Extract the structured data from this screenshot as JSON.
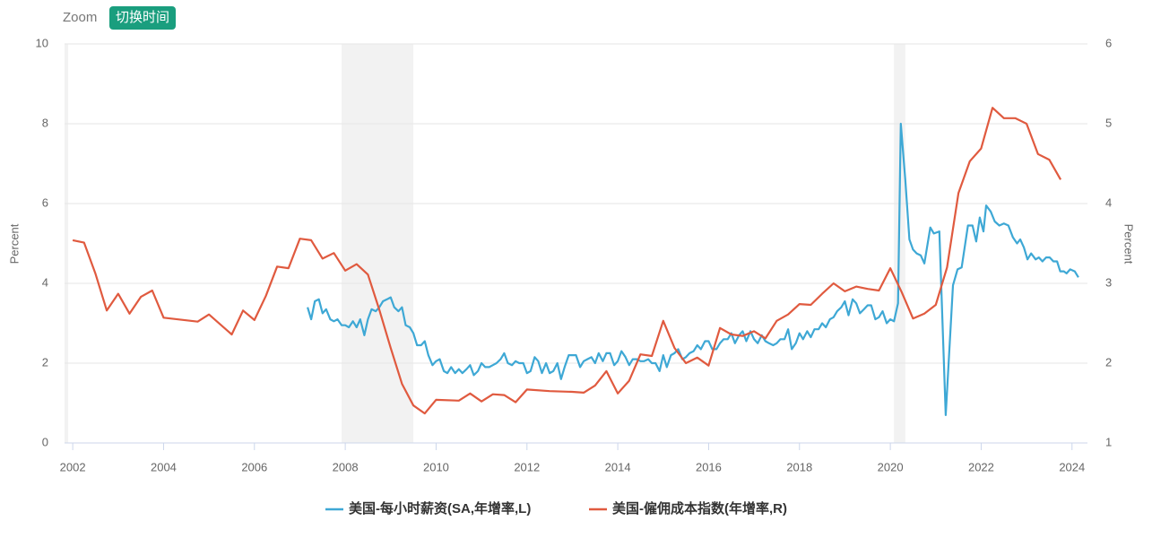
{
  "toolbar": {
    "zoom": "Zoom",
    "button": "切换时间"
  },
  "chart_data": {
    "type": "line",
    "ylabel": "Percent",
    "y2label": "Percent",
    "xlim": [
      2001.82,
      2024.34
    ],
    "xticks": [
      2002,
      2004,
      2006,
      2008,
      2010,
      2012,
      2014,
      2016,
      2018,
      2020,
      2022,
      2024
    ],
    "ylim": [
      0,
      10
    ],
    "yticks": [
      0,
      2,
      4,
      6,
      8,
      10
    ],
    "y2lim": [
      1,
      6
    ],
    "y2ticks": [
      1,
      2,
      3,
      4,
      5,
      6
    ],
    "grid": true,
    "recessions": [
      [
        2001.82,
        2001.9
      ],
      [
        2007.92,
        2009.5
      ],
      [
        2020.08,
        2020.33
      ]
    ],
    "legend": "bottom",
    "series": [
      {
        "name": "美国-每小时薪资(SA,年增率,L)",
        "color": "#3ea8d5",
        "axis": "y",
        "x": [
          2007.17,
          2007.25,
          2007.33,
          2007.42,
          2007.5,
          2007.58,
          2007.67,
          2007.75,
          2007.83,
          2007.92,
          2008.0,
          2008.08,
          2008.17,
          2008.25,
          2008.33,
          2008.42,
          2008.5,
          2008.58,
          2008.67,
          2008.75,
          2008.83,
          2008.92,
          2009.0,
          2009.08,
          2009.17,
          2009.25,
          2009.33,
          2009.42,
          2009.5,
          2009.58,
          2009.67,
          2009.75,
          2009.83,
          2009.92,
          2010.0,
          2010.08,
          2010.17,
          2010.25,
          2010.33,
          2010.42,
          2010.5,
          2010.58,
          2010.67,
          2010.75,
          2010.83,
          2010.92,
          2011.0,
          2011.08,
          2011.17,
          2011.25,
          2011.33,
          2011.42,
          2011.5,
          2011.58,
          2011.67,
          2011.75,
          2011.83,
          2011.92,
          2012.0,
          2012.08,
          2012.17,
          2012.25,
          2012.33,
          2012.42,
          2012.5,
          2012.58,
          2012.67,
          2012.75,
          2012.83,
          2012.92,
          2013.0,
          2013.08,
          2013.17,
          2013.25,
          2013.33,
          2013.42,
          2013.5,
          2013.58,
          2013.67,
          2013.75,
          2013.83,
          2013.92,
          2014.0,
          2014.08,
          2014.17,
          2014.25,
          2014.33,
          2014.42,
          2014.5,
          2014.58,
          2014.67,
          2014.75,
          2014.83,
          2014.92,
          2015.0,
          2015.08,
          2015.17,
          2015.25,
          2015.33,
          2015.42,
          2015.5,
          2015.58,
          2015.67,
          2015.75,
          2015.83,
          2015.92,
          2016.0,
          2016.08,
          2016.17,
          2016.25,
          2016.33,
          2016.42,
          2016.5,
          2016.58,
          2016.67,
          2016.75,
          2016.83,
          2016.92,
          2017.0,
          2017.08,
          2017.17,
          2017.25,
          2017.33,
          2017.42,
          2017.5,
          2017.58,
          2017.67,
          2017.75,
          2017.83,
          2017.92,
          2018.0,
          2018.08,
          2018.17,
          2018.25,
          2018.33,
          2018.42,
          2018.5,
          2018.58,
          2018.67,
          2018.75,
          2018.83,
          2018.92,
          2019.0,
          2019.08,
          2019.17,
          2019.25,
          2019.33,
          2019.42,
          2019.5,
          2019.58,
          2019.67,
          2019.75,
          2019.83,
          2019.92,
          2020.0,
          2020.08,
          2020.17,
          2020.23,
          2020.33,
          2020.42,
          2020.5,
          2020.58,
          2020.67,
          2020.75,
          2020.88,
          2020.96,
          2021.08,
          2021.22,
          2021.38,
          2021.48,
          2021.57,
          2021.71,
          2021.81,
          2021.89,
          2021.97,
          2022.05,
          2022.11,
          2022.21,
          2022.3,
          2022.4,
          2022.5,
          2022.6,
          2022.7,
          2022.79,
          2022.86,
          2022.94,
          2023.02,
          2023.1,
          2023.2,
          2023.27,
          2023.35,
          2023.43,
          2023.51,
          2023.59,
          2023.67,
          2023.74,
          2023.82,
          2023.88,
          2023.96,
          2024.06,
          2024.14
        ],
        "values": [
          3.4,
          3.1,
          3.55,
          3.6,
          3.25,
          3.35,
          3.1,
          3.05,
          3.1,
          2.95,
          2.95,
          2.9,
          3.05,
          2.9,
          3.1,
          2.7,
          3.1,
          3.35,
          3.3,
          3.4,
          3.55,
          3.6,
          3.65,
          3.4,
          3.3,
          3.4,
          2.95,
          2.9,
          2.75,
          2.45,
          2.45,
          2.55,
          2.2,
          1.95,
          2.05,
          2.1,
          1.8,
          1.75,
          1.9,
          1.75,
          1.85,
          1.75,
          1.85,
          1.95,
          1.7,
          1.8,
          2.0,
          1.9,
          1.9,
          1.95,
          2.0,
          2.1,
          2.25,
          2.0,
          1.95,
          2.05,
          2.0,
          2.0,
          1.75,
          1.8,
          2.15,
          2.05,
          1.75,
          2.0,
          1.75,
          1.8,
          2.0,
          1.6,
          1.9,
          2.2,
          2.2,
          2.2,
          1.9,
          2.05,
          2.1,
          2.15,
          2.0,
          2.25,
          2.05,
          2.25,
          2.25,
          1.95,
          2.05,
          2.3,
          2.15,
          1.95,
          2.1,
          2.1,
          2.05,
          2.05,
          2.1,
          2.0,
          2.0,
          1.8,
          2.2,
          1.9,
          2.2,
          2.25,
          2.35,
          2.1,
          2.15,
          2.25,
          2.3,
          2.45,
          2.35,
          2.55,
          2.55,
          2.35,
          2.35,
          2.5,
          2.6,
          2.6,
          2.75,
          2.5,
          2.7,
          2.8,
          2.55,
          2.8,
          2.6,
          2.5,
          2.7,
          2.55,
          2.5,
          2.45,
          2.5,
          2.6,
          2.6,
          2.85,
          2.35,
          2.5,
          2.75,
          2.6,
          2.8,
          2.65,
          2.85,
          2.85,
          3.0,
          2.9,
          3.1,
          3.15,
          3.3,
          3.4,
          3.55,
          3.2,
          3.6,
          3.5,
          3.25,
          3.35,
          3.45,
          3.45,
          3.1,
          3.15,
          3.3,
          3.0,
          3.1,
          3.05,
          3.5,
          8.0,
          6.6,
          5.1,
          4.85,
          4.75,
          4.7,
          4.5,
          5.4,
          5.25,
          5.3,
          0.7,
          3.95,
          4.35,
          4.4,
          5.45,
          5.45,
          5.05,
          5.65,
          5.3,
          5.95,
          5.8,
          5.55,
          5.45,
          5.5,
          5.45,
          5.15,
          5.0,
          5.1,
          4.9,
          4.6,
          4.75,
          4.6,
          4.65,
          4.55,
          4.65,
          4.65,
          4.55,
          4.55,
          4.3,
          4.3,
          4.25,
          4.35,
          4.3,
          4.15
        ]
      },
      {
        "name": "美国-僱佣成本指数(年增率,R)",
        "color": "#e05a3f",
        "axis": "y2",
        "x": [
          2002.0,
          2002.25,
          2002.5,
          2002.75,
          2003.0,
          2003.25,
          2003.5,
          2003.75,
          2004.0,
          2004.75,
          2005.0,
          2005.5,
          2005.75,
          2006.0,
          2006.25,
          2006.5,
          2006.75,
          2007.0,
          2007.25,
          2007.5,
          2007.75,
          2008.0,
          2008.25,
          2008.5,
          2008.75,
          2009.0,
          2009.25,
          2009.5,
          2009.75,
          2010.0,
          2010.5,
          2010.75,
          2011.0,
          2011.25,
          2011.5,
          2011.75,
          2012.0,
          2012.5,
          2013.0,
          2013.25,
          2013.5,
          2013.75,
          2014.0,
          2014.25,
          2014.5,
          2014.75,
          2015.0,
          2015.25,
          2015.5,
          2015.75,
          2016.0,
          2016.25,
          2016.5,
          2016.75,
          2017.0,
          2017.25,
          2017.5,
          2017.75,
          2018.0,
          2018.25,
          2018.5,
          2018.75,
          2019.0,
          2019.25,
          2019.5,
          2019.75,
          2020.0,
          2020.25,
          2020.5,
          2020.75,
          2021.0,
          2021.25,
          2021.5,
          2021.75,
          2022.0,
          2022.25,
          2022.5,
          2022.75,
          2023.0,
          2023.25,
          2023.5,
          2023.75
        ],
        "values": [
          3.54,
          3.51,
          3.12,
          2.66,
          2.87,
          2.62,
          2.83,
          2.91,
          2.57,
          2.52,
          2.61,
          2.36,
          2.66,
          2.54,
          2.84,
          3.21,
          3.19,
          3.56,
          3.54,
          3.31,
          3.38,
          3.16,
          3.24,
          3.11,
          2.67,
          2.19,
          1.74,
          1.47,
          1.37,
          1.54,
          1.53,
          1.62,
          1.52,
          1.61,
          1.6,
          1.51,
          1.67,
          1.65,
          1.64,
          1.63,
          1.72,
          1.9,
          1.62,
          1.78,
          2.11,
          2.09,
          2.53,
          2.19,
          2.0,
          2.07,
          1.97,
          2.44,
          2.36,
          2.34,
          2.4,
          2.31,
          2.53,
          2.61,
          2.74,
          2.73,
          2.87,
          3.0,
          2.9,
          2.96,
          2.93,
          2.91,
          3.19,
          2.89,
          2.56,
          2.62,
          2.73,
          3.2,
          4.13,
          4.53,
          4.69,
          5.2,
          5.07,
          5.07,
          5.0,
          4.62,
          4.55,
          4.3
        ]
      }
    ]
  }
}
